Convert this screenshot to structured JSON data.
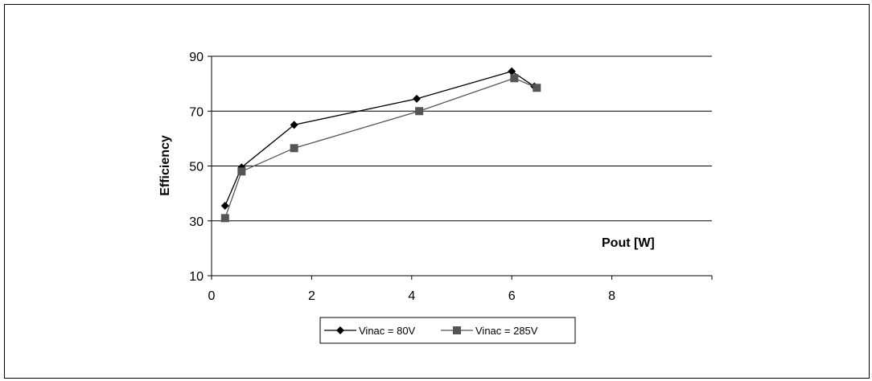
{
  "chart_data": {
    "type": "line",
    "title": "",
    "xlabel": "Pout [W]",
    "ylabel": "Efficiency",
    "xlim": [
      0,
      10
    ],
    "ylim": [
      10,
      90
    ],
    "x_ticks": [
      0,
      2,
      4,
      6,
      8
    ],
    "y_ticks": [
      90,
      70,
      50,
      30,
      10
    ],
    "grid": "horizontal",
    "legend_position": "bottom",
    "series": [
      {
        "name": "Vinac = 80V",
        "marker": "diamond",
        "color": "#000000",
        "x": [
          0.27,
          0.6,
          1.65,
          4.1,
          6.0,
          6.45
        ],
        "y": [
          35.5,
          49.5,
          65,
          74.5,
          84.5,
          79
        ]
      },
      {
        "name": "Vinac = 285V",
        "marker": "square",
        "color": "#555555",
        "x": [
          0.27,
          0.6,
          1.65,
          4.15,
          6.05,
          6.5
        ],
        "y": [
          31,
          48,
          56.5,
          70,
          82,
          78.5
        ]
      }
    ]
  }
}
